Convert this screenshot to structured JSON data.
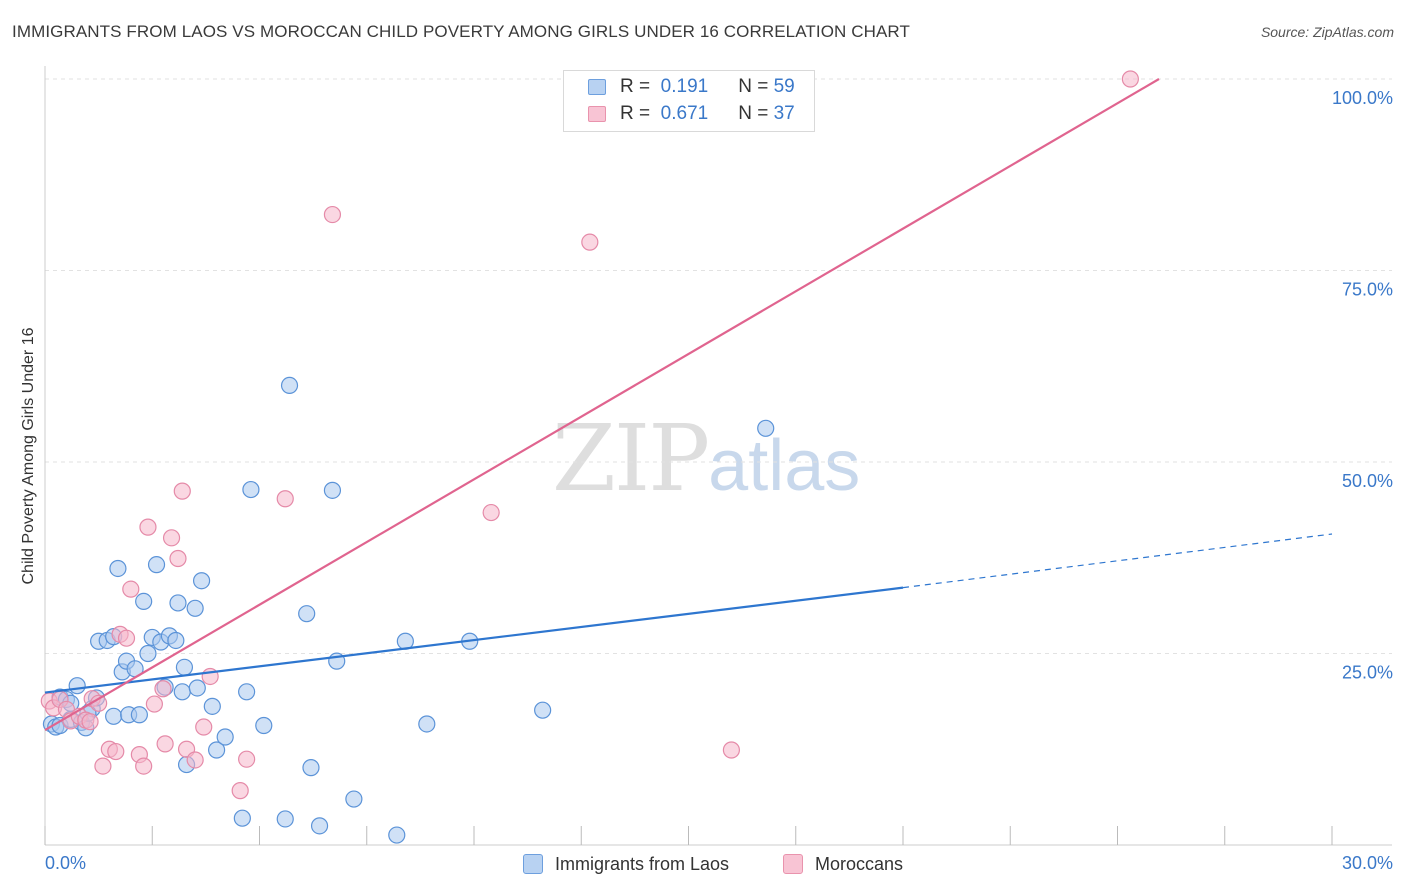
{
  "header": {
    "title": "IMMIGRANTS FROM LAOS VS MOROCCAN CHILD POVERTY AMONG GIRLS UNDER 16 CORRELATION CHART",
    "source": "Source: ZipAtlas.com"
  },
  "watermark": {
    "zip": "ZIP",
    "atlas": "atlas"
  },
  "legend": {
    "r_label": "R =",
    "n_label": "N =",
    "series": [
      {
        "r": "0.191",
        "n": "59",
        "fill": "#b8d2f2",
        "stroke": "#6d9fde"
      },
      {
        "r": "0.671",
        "n": "37",
        "fill": "#f8c4d4",
        "stroke": "#e993ad"
      }
    ]
  },
  "colors": {
    "blue_point_fill": "#a9c8ee",
    "blue_point_stroke": "#5b93d8",
    "pink_point_fill": "#f6b7cb",
    "pink_point_stroke": "#e58aa8",
    "blue_line": "#2e76cf",
    "pink_line": "#e0648f",
    "axis_text": "#3a78c9",
    "grid": "#e2e2e2"
  },
  "chart_data": {
    "type": "scatter",
    "title": "IMMIGRANTS FROM LAOS VS MOROCCAN CHILD POVERTY AMONG GIRLS UNDER 16 CORRELATION CHART",
    "xlabel": "",
    "ylabel": "Child Poverty Among Girls Under 16",
    "xlim": [
      0,
      30
    ],
    "ylim": [
      0,
      100
    ],
    "x_tick_labels": [
      "0.0%",
      "30.0%"
    ],
    "y_tick_labels": [
      "25.0%",
      "50.0%",
      "75.0%",
      "100.0%"
    ],
    "y_ticks": [
      25,
      50,
      75,
      100
    ],
    "grid": true,
    "series": [
      {
        "name": "Immigrants from Laos",
        "r": 0.191,
        "n": 59,
        "trend": {
          "x0": 0,
          "y0": 19.9,
          "x1": 20.0,
          "y1": 33.6,
          "dashed_to_x": 30,
          "dashed_to_y": 40.6
        },
        "points": [
          [
            0.15,
            15.8
          ],
          [
            0.25,
            15.4
          ],
          [
            0.35,
            15.6
          ],
          [
            0.35,
            19.3
          ],
          [
            0.5,
            19.0
          ],
          [
            0.6,
            16.4
          ],
          [
            0.75,
            20.8
          ],
          [
            0.85,
            16.0
          ],
          [
            0.95,
            15.3
          ],
          [
            1.1,
            17.8
          ],
          [
            1.2,
            19.2
          ],
          [
            1.25,
            26.6
          ],
          [
            1.45,
            26.7
          ],
          [
            1.6,
            27.2
          ],
          [
            1.6,
            16.8
          ],
          [
            1.7,
            36.1
          ],
          [
            1.8,
            22.6
          ],
          [
            1.9,
            24.0
          ],
          [
            1.95,
            17.0
          ],
          [
            2.1,
            23.0
          ],
          [
            2.2,
            17.0
          ],
          [
            2.3,
            31.8
          ],
          [
            2.4,
            25.0
          ],
          [
            2.5,
            27.1
          ],
          [
            2.6,
            36.6
          ],
          [
            2.7,
            26.5
          ],
          [
            2.8,
            20.6
          ],
          [
            2.9,
            27.3
          ],
          [
            3.05,
            26.7
          ],
          [
            3.1,
            31.6
          ],
          [
            3.2,
            20.0
          ],
          [
            3.25,
            23.2
          ],
          [
            3.3,
            10.5
          ],
          [
            3.5,
            30.9
          ],
          [
            3.55,
            20.5
          ],
          [
            3.65,
            34.5
          ],
          [
            3.9,
            18.1
          ],
          [
            4.0,
            12.4
          ],
          [
            4.2,
            14.1
          ],
          [
            4.6,
            3.5
          ],
          [
            4.7,
            20.0
          ],
          [
            4.8,
            46.4
          ],
          [
            5.1,
            15.6
          ],
          [
            5.6,
            3.4
          ],
          [
            5.7,
            60.0
          ],
          [
            6.1,
            30.2
          ],
          [
            6.2,
            10.1
          ],
          [
            6.4,
            2.5
          ],
          [
            6.7,
            46.3
          ],
          [
            6.8,
            24.0
          ],
          [
            7.2,
            6.0
          ],
          [
            8.2,
            1.3
          ],
          [
            8.4,
            26.6
          ],
          [
            8.9,
            15.8
          ],
          [
            9.9,
            26.6
          ],
          [
            11.6,
            17.6
          ],
          [
            16.8,
            54.4
          ],
          [
            0.6,
            18.5
          ],
          [
            1.0,
            17.2
          ]
        ]
      },
      {
        "name": "Moroccans",
        "r": 0.671,
        "n": 37,
        "trend": {
          "x0": 0,
          "y0": 15.0,
          "x1": 30,
          "y1": 113.2
        },
        "points": [
          [
            0.1,
            18.8
          ],
          [
            0.2,
            17.9
          ],
          [
            0.35,
            19.0
          ],
          [
            0.5,
            17.7
          ],
          [
            0.6,
            16.2
          ],
          [
            0.8,
            16.8
          ],
          [
            0.95,
            16.3
          ],
          [
            1.05,
            16.1
          ],
          [
            1.1,
            19.1
          ],
          [
            1.25,
            18.5
          ],
          [
            1.35,
            10.3
          ],
          [
            1.5,
            12.5
          ],
          [
            1.65,
            12.2
          ],
          [
            1.75,
            27.5
          ],
          [
            1.9,
            27.0
          ],
          [
            2.0,
            33.4
          ],
          [
            2.2,
            11.8
          ],
          [
            2.3,
            10.3
          ],
          [
            2.4,
            41.5
          ],
          [
            2.55,
            18.4
          ],
          [
            2.75,
            20.4
          ],
          [
            2.8,
            13.2
          ],
          [
            2.95,
            40.1
          ],
          [
            3.1,
            37.4
          ],
          [
            3.2,
            46.2
          ],
          [
            3.3,
            12.5
          ],
          [
            3.5,
            11.1
          ],
          [
            3.7,
            15.4
          ],
          [
            3.85,
            22.0
          ],
          [
            4.55,
            7.1
          ],
          [
            4.7,
            11.2
          ],
          [
            5.6,
            45.2
          ],
          [
            6.7,
            82.3
          ],
          [
            10.4,
            43.4
          ],
          [
            12.7,
            78.7
          ],
          [
            16.0,
            12.4
          ],
          [
            25.3,
            100.0
          ]
        ]
      }
    ]
  },
  "bottom_legend": {
    "items": [
      {
        "label": "Immigrants from Laos",
        "fill": "#b8d2f2",
        "stroke": "#6d9fde"
      },
      {
        "label": "Moroccans",
        "fill": "#f8c4d4",
        "stroke": "#e993ad"
      }
    ]
  }
}
